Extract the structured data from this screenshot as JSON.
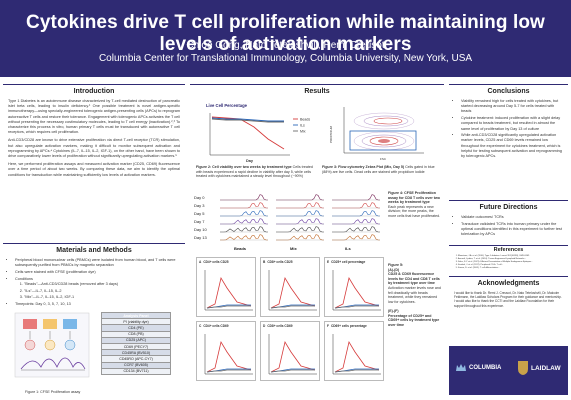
{
  "header": {
    "title": "Cytokines drive T cell proliferation while maintaining low levels of activation markers",
    "authors": "Chloe Gong, Nato Teteloshvili, Remi Creusot",
    "affiliation": "Columbia Center for Translational Immunology, Columbia University, New York, USA"
  },
  "intro": {
    "heading": "Introduction",
    "paragraphs": [
      "Type 1 Diabetes is an autoimmune disease characterized by T-cell mediated destruction of pancreatic islet beta cells, leading to insulin deficiency.¹ One possible treatment is novel antigen-specific immunotherapy—using specially-engineered tolerogenic antigen-presenting cells (APCs) to reprogram autoreactive T cells and restore their tolerance. Engagement with tolerogenic APCs activates the T cell without presenting the necessary costimulatory molecules, leading to T cell energy (inactivation).²,³ To characterize this process in vitro, human primary T cells must be transduced with autoreactive T cell receptors, which requires cell proliferation.",
      "Anti-CD3/CD28 are known to drive extensive proliferation via direct T-cell receptor (TCR) stimulation, but also upregulate activation markers, making it difficult to monitor subsequent activation and reprogramming by APCs.⁴ Cytokines (IL-7, IL-15, IL-2, IGF-1), on the other hand, have been shown to drive comparatively lower levels of proliferation without significantly upregulating activation markers.⁵",
      "Here, we performed proliferation assays and measured activation marker (CD25, CD69) fluorescence over a time period of about two weeks. By comparing these data, we aim to identify the optimal conditions for transduction while maintaining sufficiently low levels of activation markers."
    ]
  },
  "methods": {
    "heading": "Materials and Methods",
    "bullets": [
      "Peripheral blood mononuclear cells (PBMCs) were isolated from human blood, and T cells were subsequently purified from PBMCs by magnetic separation",
      "Cells were stained with CFSE (proliferation dye)",
      "Conditions",
      "Timepoints: Day 0, 3, 5, 7, 10, 13"
    ],
    "conditions": [
      "\"Beads\"—Anti-CD3/CD28 beads (removed after 3 days)",
      "\"ILs\"—IL-7, IL-15, IL-2",
      "\"Mix\"—IL-7, IL-15, IL-2, IGF-1"
    ],
    "figure1_caption": "Figure 1: CFSE Proliferation assay",
    "panel": {
      "header": "Analysis Panel",
      "rows": [
        "PI (viability dye)",
        "CD4 (PE)",
        "CD8 (PB)",
        "CD25 (APC)",
        "CD69 (PECY7)",
        "CD45RA (BV510)",
        "CD45RO (APC-CY7)",
        "CCR7 (BV605)",
        "CD134 (BV711)"
      ]
    }
  },
  "results": {
    "heading": "Results",
    "fig2": {
      "plot_title": "Live Cell Percentage",
      "xlabel": "Day",
      "legend": [
        "Beads",
        "ILs",
        "Mix"
      ],
      "caption_bold": "Figure 2: Cell viability over two weeks by treatment type",
      "caption": "Cells treated with beads experienced a rapid decline in viability after day 5, while cells treated with cytokines maintained a steady level throughout (~90%)"
    },
    "fig3": {
      "caption_bold": "Figure 3: Flow cytometry Zebra Plot (Mix, Day 5)",
      "caption": "Cells gated in blue (88%) are live cells. Dead cells are stained with propidium iodide",
      "ylabel": "PROPIDIUM",
      "xlabel": "FSC"
    },
    "fig4": {
      "day_labels": [
        "Day 0",
        "Day 3",
        "Day 5",
        "Day 7",
        "Day 10",
        "Day 13"
      ],
      "col_labels": [
        "Beads",
        "Mix",
        "ILs"
      ],
      "caption_bold": "Figure 4: CFSE Proliferation assay for CD8 T cells over two weeks by treatment type",
      "caption": "Each peak represents a new division; the more peaks, the more cells that have proliferated."
    },
    "fig5": {
      "caption_bold": "Figure 5:",
      "parts": [
        "(A)-(D)",
        "CD25 & CD69 fluorescence levels for CD4 and CD8 T cells by treatment type over time",
        "Activation marker levels rose and fell drastically with beads treatment, while they remained low for cytokines.",
        "(E)-(F)",
        "Percentage of CD25+ and CD69+ cells by treatment type over time"
      ],
      "panels": [
        {
          "letter": "A",
          "title": "CD4+ cells CD25"
        },
        {
          "letter": "B",
          "title": "CD8+ cells CD25"
        },
        {
          "letter": "E",
          "title": "CD25+ cell percentage"
        },
        {
          "letter": "C",
          "title": "CD4+ cells CD69"
        },
        {
          "letter": "D",
          "title": "CD8+ cells CD69"
        },
        {
          "letter": "F",
          "title": "CD69+ cells percentage"
        }
      ]
    }
  },
  "conclusions": {
    "heading": "Conclusions",
    "bullets": [
      "Viability remained high for cells treated with cytokines, but started decreasing around Day 5-7 for cells treated with beads",
      "Cytokine treatment: induced proliferation with a slight delay compared to beads treatment, but resulted in almost the same level of proliferation by Day 13 of culture",
      "While anti-CD3/CD28 significantly upregulated activation marker levels, CD25 and CD69 levels remained low throughout the experiment for cytokines treatment, which is helpful for testing subsequent activation and reprogramming by tolerogenic APCs."
    ]
  },
  "future": {
    "heading": "Future Directions",
    "bullets": [
      "Validate outcomes/ TCRs",
      "Transduce validated TCRs into human primary under the optimal conditions identified in this experiment to further test tolerization by APCs"
    ]
  },
  "refs": {
    "heading": "References",
    "items": [
      "Bluestone, J.A. et al. (2010). Type 1 diabetes. Lancet 391(10138), 2449-2462.",
      "Ascardi, Ljubica, T. et al. (2014). Tissue-Engineered Lymphoid Networks...",
      "Sohn, S.Y. et al. (2021). Efficient Presentation of Multiple Endogenous Epitopes...",
      "Kwiskal, J. et al. (2017). Peripheral CD4+ T cell...",
      "Kumar, S. et al. (2005). T cell differentiation..."
    ]
  },
  "ack": {
    "heading": "Acknowledgments",
    "text": "I would like to thank Dr. Remi J. Creusot, Dr. Nato Teteloshvili, Dr. Malcolm Feldmann, the Laidlaw Scholars Program for their guidance and mentorship. I would also like to thank the CCTI and the Laidlaw Foundation for their support throughout this experience."
  },
  "logos": {
    "left": "COLUMBIA",
    "right": "LAIDLAW"
  }
}
